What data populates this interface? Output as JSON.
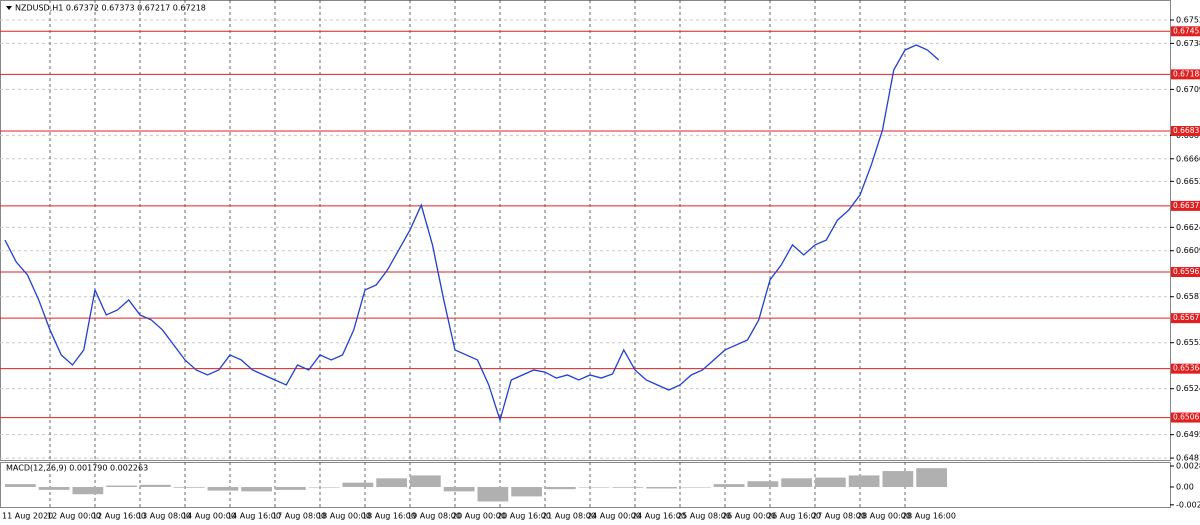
{
  "chart_data": [
    {
      "type": "line",
      "title": "NZDUSD,H1  0.67372 0.67373 0.67217 0.67218",
      "color": "#2040d0",
      "values": [
        0.66161,
        0.66025,
        0.65945,
        0.6579,
        0.65604,
        0.65449,
        0.65387,
        0.6548,
        0.65852,
        0.65697,
        0.65728,
        0.6579,
        0.65697,
        0.65666,
        0.65604,
        0.65511,
        0.65418,
        0.65356,
        0.65325,
        0.65356,
        0.65449,
        0.65418,
        0.65356,
        0.65325,
        0.65294,
        0.65263,
        0.65387,
        0.65356,
        0.65449,
        0.65418,
        0.65449,
        0.65604,
        0.65852,
        0.65883,
        0.65976,
        0.661,
        0.66224,
        0.66378,
        0.66131,
        0.6579,
        0.6548,
        0.65449,
        0.65418,
        0.65263,
        0.65046,
        0.65294,
        0.65325,
        0.65356,
        0.65343,
        0.65306,
        0.65325,
        0.65294,
        0.65325,
        0.65306,
        0.65331,
        0.6548,
        0.65356,
        0.65294,
        0.65263,
        0.65232,
        0.65263,
        0.65325,
        0.65356,
        0.65418,
        0.6548,
        0.65511,
        0.65542,
        0.65666,
        0.65914,
        0.66007,
        0.66131,
        0.66069,
        0.66131,
        0.66161,
        0.66285,
        0.66347,
        0.6644,
        0.66626,
        0.66843,
        0.67215,
        0.67339,
        0.6737,
        0.67339,
        0.67277
      ],
      "ylim": [
        0.64798,
        0.67649
      ],
      "yticks": [
        0.67525,
        {
          "value": 0.6738,
          "label": "0.67380"
        },
        0.67095,
        {
          "value": 0.6681,
          "label": "0.66810"
        },
        0.66665,
        0.66525,
        {
          "value": 0.6624,
          "label": "0.66240"
        },
        0.66095,
        {
          "value": 0.6581,
          "label": "0.65810"
        },
        0.65525,
        {
          "value": 0.6524,
          "label": "0.65240"
        },
        0.64955,
        {
          "value": 0.6481,
          "label": "0.64810"
        }
      ],
      "levels": [
        0.67455,
        0.67188,
        0.66837,
        0.66373,
        0.65963,
        0.65677,
        0.65364,
        0.65061
      ],
      "level_color": "#e02020",
      "xtick_labels": [
        "11 Aug 2020",
        "12 Aug 00:00",
        "12 Aug 16:00",
        "13 Aug 08:00",
        "14 Aug 00:00",
        "14 Aug 16:00",
        "17 Aug 08:00",
        "18 Aug 00:00",
        "18 Aug 16:00",
        "19 Aug 08:00",
        "20 Aug 00:00",
        "20 Aug 16:00",
        "21 Aug 08:00",
        "24 Aug 00:00",
        "24 Aug 16:00",
        "25 Aug 08:00",
        "26 Aug 00:00",
        "26 Aug 16:00",
        "27 Aug 08:00",
        "28 Aug 00:00",
        "28 Aug 16:00"
      ],
      "grid": true
    },
    {
      "type": "histogram",
      "title": "MACD(12,26,9) 0.001790 0.002263",
      "color": "#b0b0b0",
      "values": [
        0.0004,
        -0.0004,
        -0.001,
        0.0002,
        0.0003,
        -0.0001,
        -0.0005,
        -0.0006,
        -0.0004,
        0,
        0.0006,
        0.0012,
        0.0016,
        -0.0006,
        -0.002,
        -0.0013,
        -0.0003,
        0,
        -0.0001,
        -0.0002,
        0,
        0.0004,
        0.0008,
        0.0012,
        0.0013,
        0.0016,
        0.0022,
        0.0026
      ],
      "ylim": [
        -0.00276,
        0.00345
      ],
      "yticks": [
        0.002898,
        {
          "value": 0,
          "label": "0.00"
        },
        -0.00246
      ]
    }
  ]
}
